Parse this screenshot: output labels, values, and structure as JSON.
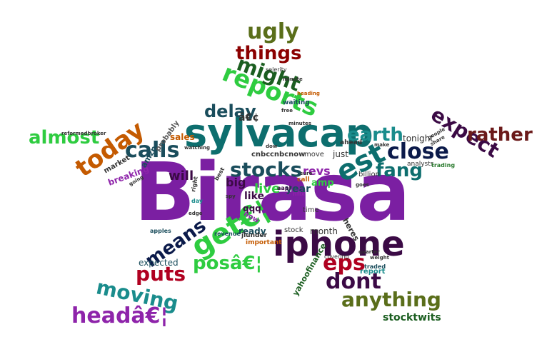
{
  "cloud": {
    "colors": {
      "purple": "#7b1fa2",
      "darkpurple": "#3b0a45",
      "teal": "#0d6e6e",
      "darkteal": "#1a4d5c",
      "green": "#2e7d32",
      "olive": "#5a6e1a",
      "brightgreen": "#2ecc40",
      "darkred": "#8b0000",
      "maroon": "#6b1a1a",
      "orange": "#c45a00",
      "navy": "#0b1a4a",
      "magenta": "#8e24aa",
      "forest": "#1b5e20"
    },
    "words": [
      {
        "key": "birasa",
        "text": "Birasa"
      },
      {
        "key": "sylvacap",
        "text": "sylvacap"
      },
      {
        "key": "iphone",
        "text": "iphone"
      },
      {
        "key": "est",
        "text": "est"
      },
      {
        "key": "reports",
        "text": "reports"
      },
      {
        "key": "today",
        "text": "today"
      },
      {
        "key": "calls",
        "text": "calls"
      },
      {
        "key": "stocks",
        "text": "stocks"
      },
      {
        "key": "close",
        "text": "close"
      },
      {
        "key": "earth",
        "text": "earth"
      },
      {
        "key": "fang",
        "text": "fang"
      },
      {
        "key": "expect",
        "text": "expect"
      },
      {
        "key": "rather",
        "text": "rather"
      },
      {
        "key": "almost",
        "text": "almost"
      },
      {
        "key": "delay",
        "text": "delay"
      },
      {
        "key": "might",
        "text": "might"
      },
      {
        "key": "things",
        "text": "things"
      },
      {
        "key": "ugly",
        "text": "ugly"
      },
      {
        "key": "get",
        "text": "get€¦"
      },
      {
        "key": "means",
        "text": "means"
      },
      {
        "key": "puts",
        "text": "puts"
      },
      {
        "key": "pos",
        "text": "posâ€¦"
      },
      {
        "key": "eps",
        "text": "eps"
      },
      {
        "key": "dont",
        "text": "dont"
      },
      {
        "key": "anything",
        "text": "anything"
      },
      {
        "key": "moving",
        "text": "moving"
      },
      {
        "key": "head",
        "text": "headâ€¦"
      },
      {
        "key": "stocktwits",
        "text": "stocktwits"
      },
      {
        "key": "revs",
        "text": "revs"
      },
      {
        "key": "live",
        "text": "live"
      },
      {
        "key": "big",
        "text": "big"
      },
      {
        "key": "will",
        "text": "will"
      },
      {
        "key": "amp",
        "text": "amp"
      },
      {
        "key": "year",
        "text": "year"
      },
      {
        "key": "bullet",
        "text": "â€¢"
      },
      {
        "key": "tonight",
        "text": "tonight"
      },
      {
        "key": "sales",
        "text": "sales"
      },
      {
        "key": "breaking",
        "text": "breaking"
      },
      {
        "key": "amzn",
        "text": "amzn"
      },
      {
        "key": "market",
        "text": "market"
      },
      {
        "key": "probably",
        "text": "probably"
      },
      {
        "key": "expected",
        "text": "expected"
      },
      {
        "key": "yahoofinance",
        "text": "yahoofinance"
      },
      {
        "key": "report",
        "text": "report"
      },
      {
        "key": "heres",
        "text": "heres"
      },
      {
        "key": "month",
        "text": "month"
      },
      {
        "key": "stock",
        "text": "stock"
      },
      {
        "key": "ready",
        "text": "ready"
      },
      {
        "key": "like",
        "text": "like"
      },
      {
        "key": "qqq",
        "text": "qqq"
      },
      {
        "key": "now",
        "text": "now"
      },
      {
        "key": "time",
        "text": "time"
      },
      {
        "key": "important",
        "text": "important"
      },
      {
        "key": "cnbc",
        "text": "cnbc"
      },
      {
        "key": "cnbcnow",
        "text": "cnbcnow"
      },
      {
        "key": "move",
        "text": "move"
      },
      {
        "key": "just",
        "text": "just"
      },
      {
        "key": "billion",
        "text": "billion"
      },
      {
        "key": "call",
        "text": "call"
      },
      {
        "key": "ahead",
        "text": "ahead"
      },
      {
        "key": "analysts",
        "text": "analysts"
      },
      {
        "key": "trading",
        "text": "trading"
      },
      {
        "key": "waiting",
        "text": "waiting"
      },
      {
        "key": "selerity",
        "text": "selerity"
      },
      {
        "key": "apples",
        "text": "apples"
      },
      {
        "key": "revenue",
        "text": "revenue"
      },
      {
        "key": "covering",
        "text": "covering"
      },
      {
        "key": "traded",
        "text": "traded"
      },
      {
        "key": "aapl",
        "text": "aapl"
      },
      {
        "key": "nflx",
        "text": "nflx"
      },
      {
        "key": "minute",
        "text": "minute"
      },
      {
        "key": "minutes",
        "text": "minutes"
      },
      {
        "key": "right",
        "text": "right"
      },
      {
        "key": "day",
        "text": "day"
      },
      {
        "key": "best",
        "text": "best"
      },
      {
        "key": "make",
        "text": "make"
      },
      {
        "key": "share",
        "text": "share"
      },
      {
        "key": "people",
        "text": "people"
      },
      {
        "key": "sure",
        "text": "sure"
      },
      {
        "key": "going",
        "text": "going"
      },
      {
        "key": "reformedbroker",
        "text": "reformedbroker"
      },
      {
        "key": "dow",
        "text": "dow"
      },
      {
        "key": "free",
        "text": "free"
      },
      {
        "key": "spy",
        "text": "spy"
      },
      {
        "key": "edge",
        "text": "edge"
      },
      {
        "key": "watching",
        "text": "watching"
      },
      {
        "key": "heading",
        "text": "heading"
      },
      {
        "key": "quarter",
        "text": "quarter"
      },
      {
        "key": "weight",
        "text": "weight"
      },
      {
        "key": "jlunder",
        "text": "jlunder"
      },
      {
        "key": "goes",
        "text": "goes"
      }
    ]
  }
}
